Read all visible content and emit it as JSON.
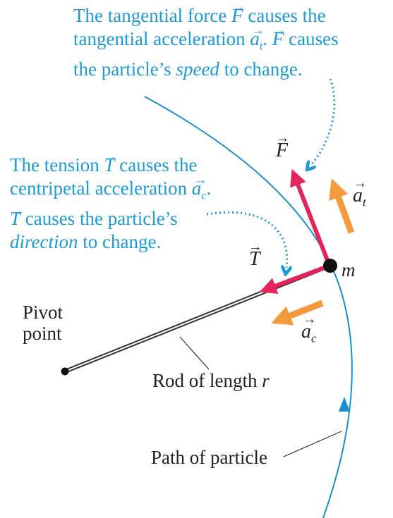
{
  "callout_speed": {
    "line1_pre": "The tangential force ",
    "force_symbol": "F",
    "line1_post": " causes the",
    "line2_pre": "tangential acceleration ",
    "accel_symbol": "a",
    "accel_sub": "t",
    "line2_mid": ". ",
    "line2_post": " causes",
    "line3_pre": "the particle’s ",
    "line3_em": "speed",
    "line3_post": " to change."
  },
  "callout_direction": {
    "line1_pre": "The tension ",
    "tension_symbol": "T",
    "line1_post": " causes the",
    "line2_pre": "centripetal acceleration ",
    "accel_symbol": "a",
    "accel_sub": "c",
    "line2_post": ".",
    "line3_post": " causes the particle’s",
    "line4_em": "direction",
    "line4_post": " to change."
  },
  "labels": {
    "force": "F",
    "tension": "T",
    "mass": "m",
    "a_t": "a",
    "a_t_sub": "t",
    "a_c": "a",
    "a_c_sub": "c",
    "pivot": [
      "Pivot",
      "point"
    ],
    "rod": "Rod of length ",
    "rod_r": "r",
    "path": "Path of particle"
  },
  "colors": {
    "callout_text": "#1a9ad6",
    "path_curve": "#1a8fd0",
    "force_vectors": "#e4245a",
    "acceleration_arrows": "#f39a3c",
    "label_text": "#222222"
  }
}
